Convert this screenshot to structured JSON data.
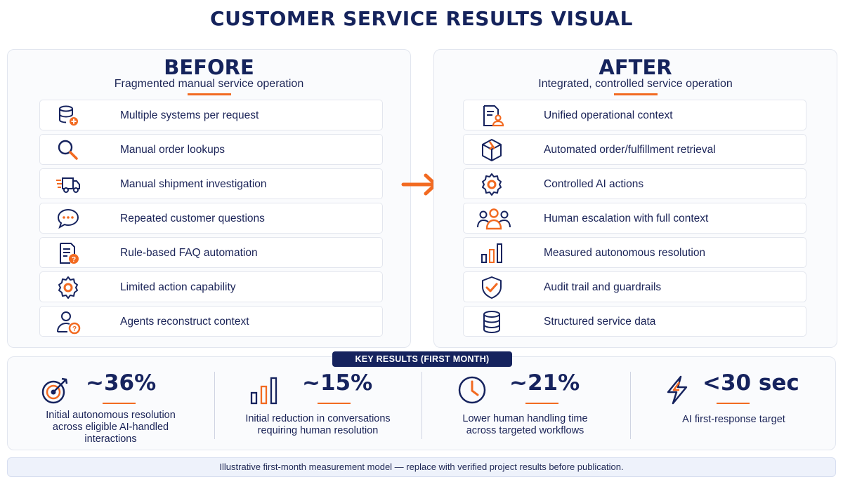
{
  "title": "CUSTOMER SERVICE RESULTS VISUAL",
  "colors": {
    "navy": "#16235e",
    "accent": "#f26a21",
    "panel_bg": "#fafbfd"
  },
  "before": {
    "heading": "BEFORE",
    "subtitle": "Fragmented manual service operation",
    "items": [
      {
        "label": "Multiple systems per request",
        "icon": "database-plus-icon"
      },
      {
        "label": "Manual order lookups",
        "icon": "magnifier-icon"
      },
      {
        "label": "Manual shipment investigation",
        "icon": "delivery-truck-icon"
      },
      {
        "label": "Repeated customer questions",
        "icon": "chat-bubble-icon"
      },
      {
        "label": "Rule-based FAQ automation",
        "icon": "document-question-icon"
      },
      {
        "label": "Limited action capability",
        "icon": "gear-icon"
      },
      {
        "label": "Agents reconstruct context",
        "icon": "user-question-icon"
      }
    ]
  },
  "after": {
    "heading": "AFTER",
    "subtitle": "Integrated, controlled service operation",
    "items": [
      {
        "label": "Unified operational context",
        "icon": "document-user-icon"
      },
      {
        "label": "Automated order/fulfillment retrieval",
        "icon": "package-box-icon"
      },
      {
        "label": "Controlled AI actions",
        "icon": "gear-icon"
      },
      {
        "label": "Human escalation with full context",
        "icon": "team-icon"
      },
      {
        "label": "Measured autonomous resolution",
        "icon": "bar-chart-icon"
      },
      {
        "label": "Audit trail and guardrails",
        "icon": "shield-check-icon"
      },
      {
        "label": "Structured service data",
        "icon": "database-icon"
      }
    ]
  },
  "transition_icon": "right-arrow-icon",
  "results": {
    "badge": "KEY RESULTS (FIRST MONTH)",
    "metrics": [
      {
        "value": "~36%",
        "icon": "target-arrow-icon",
        "line1": "Initial autonomous resolution",
        "line2": "across eligible AI-handled",
        "line3": "interactions"
      },
      {
        "value": "~15%",
        "icon": "bar-chart-icon",
        "line1": "Initial reduction in conversations",
        "line2": "requiring human resolution"
      },
      {
        "value": "~21%",
        "icon": "clock-icon",
        "line1": "Lower human handling time",
        "line2": "across targeted workflows"
      },
      {
        "value": "<30 sec",
        "icon": "lightning-icon",
        "line1": "AI first-response target"
      }
    ]
  },
  "footer": "Illustrative first-month measurement model — replace with verified project results before publication."
}
